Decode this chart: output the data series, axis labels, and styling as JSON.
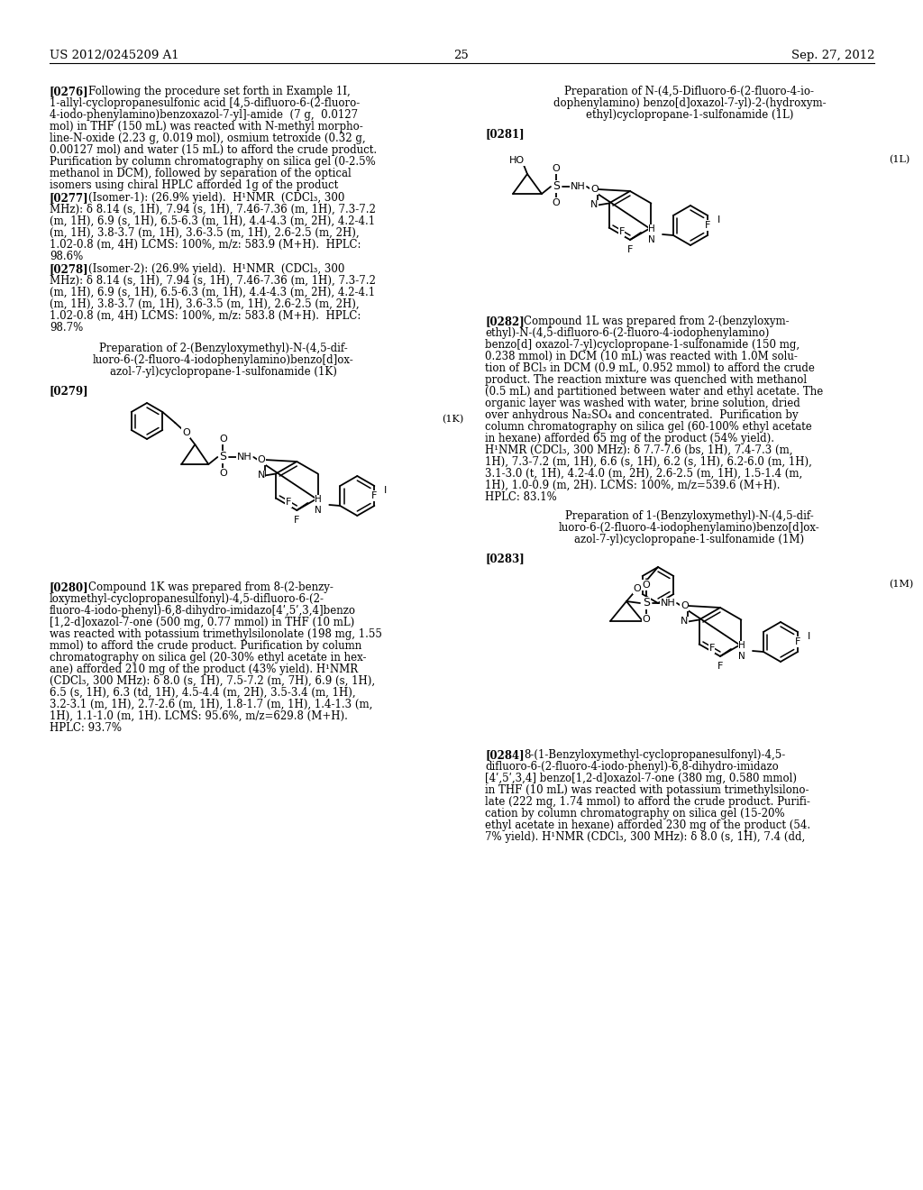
{
  "bg": "#ffffff",
  "header_left": "US 2012/0245209 A1",
  "header_right": "Sep. 27, 2012",
  "page_num": "25",
  "fs": 8.5,
  "lh": 13.0
}
